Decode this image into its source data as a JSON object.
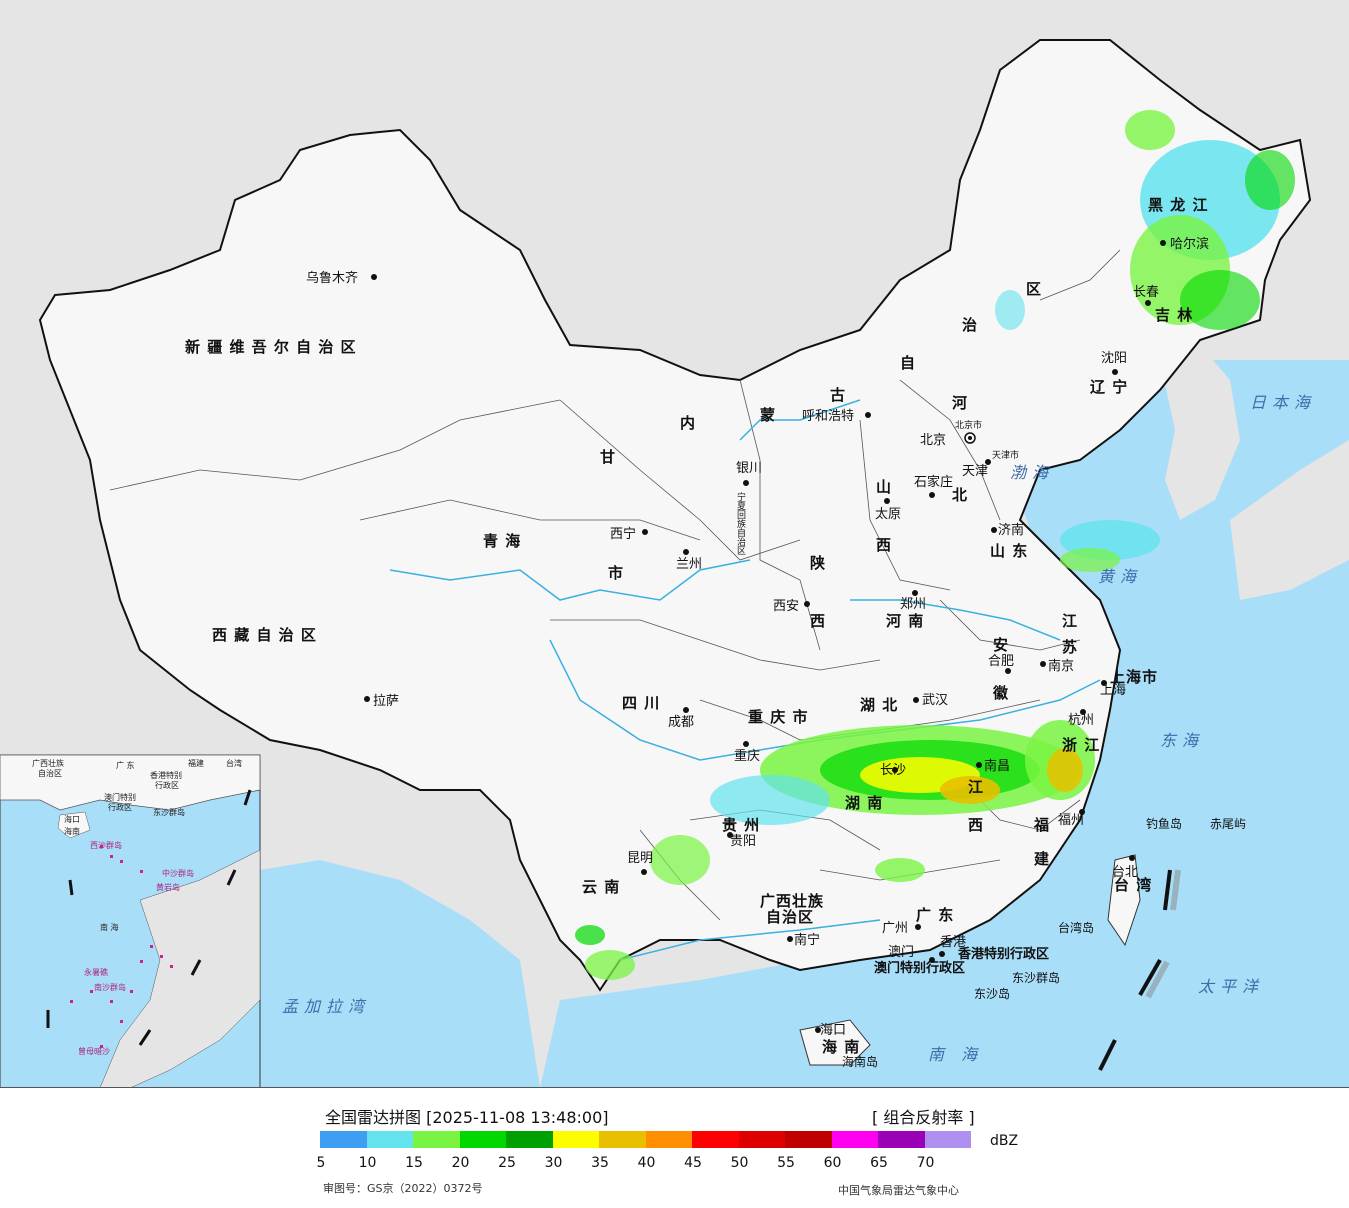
{
  "map": {
    "provinces": [
      {
        "name": "新 疆 维 吾 尔 自 治 区"
      },
      {
        "name": "西 藏 自 治 区"
      },
      {
        "name": "青 海"
      },
      {
        "name": "甘"
      },
      {
        "name": "内"
      },
      {
        "name": "蒙"
      },
      {
        "name": "古"
      },
      {
        "name": "自"
      },
      {
        "name": "治"
      },
      {
        "name": "区"
      },
      {
        "name": "黑 龙 江"
      },
      {
        "name": "吉 林"
      },
      {
        "name": "辽 宁"
      },
      {
        "name": "河"
      },
      {
        "name": "北"
      },
      {
        "name": "山"
      },
      {
        "name": "西"
      },
      {
        "name": "陕"
      },
      {
        "name": "西"
      },
      {
        "name": "河 南"
      },
      {
        "name": "山 东"
      },
      {
        "name": "江"
      },
      {
        "name": "苏"
      },
      {
        "name": "安"
      },
      {
        "name": "徽"
      },
      {
        "name": "上海市"
      },
      {
        "name": "浙 江"
      },
      {
        "name": "湖 北"
      },
      {
        "name": "四 川"
      },
      {
        "name": "重 庆 市"
      },
      {
        "name": "湖 南"
      },
      {
        "name": "江"
      },
      {
        "name": "西"
      },
      {
        "name": "福"
      },
      {
        "name": "建"
      },
      {
        "name": "贵 州"
      },
      {
        "name": "云 南"
      },
      {
        "name": "广西壮族"
      },
      {
        "name": "自治区"
      },
      {
        "name": "广 东"
      },
      {
        "name": "海 南"
      },
      {
        "name": "台 湾"
      },
      {
        "name": "宁夏回族自治区"
      },
      {
        "name": "市"
      }
    ],
    "cities": [
      {
        "name": "乌鲁木齐"
      },
      {
        "name": "拉萨"
      },
      {
        "name": "西宁"
      },
      {
        "name": "兰州"
      },
      {
        "name": "银川"
      },
      {
        "name": "呼和浩特"
      },
      {
        "name": "北京"
      },
      {
        "name": "北京市"
      },
      {
        "name": "天津"
      },
      {
        "name": "天津市"
      },
      {
        "name": "石家庄"
      },
      {
        "name": "太原"
      },
      {
        "name": "西安"
      },
      {
        "name": "郑州"
      },
      {
        "name": "济南"
      },
      {
        "name": "合肥"
      },
      {
        "name": "南京"
      },
      {
        "name": "上海"
      },
      {
        "name": "杭州"
      },
      {
        "name": "武汉"
      },
      {
        "name": "成都"
      },
      {
        "name": "重庆"
      },
      {
        "name": "长沙"
      },
      {
        "name": "南昌"
      },
      {
        "name": "福州"
      },
      {
        "name": "贵阳"
      },
      {
        "name": "昆明"
      },
      {
        "name": "南宁"
      },
      {
        "name": "广州"
      },
      {
        "name": "澳门"
      },
      {
        "name": "香港"
      },
      {
        "name": "海口"
      },
      {
        "name": "台北"
      },
      {
        "name": "哈尔滨"
      },
      {
        "name": "长春"
      },
      {
        "name": "沈阳"
      }
    ],
    "seas": [
      {
        "name": "日本海"
      },
      {
        "name": "渤海"
      },
      {
        "name": "黄海"
      },
      {
        "name": "东海"
      },
      {
        "name": "太平洋"
      },
      {
        "name": "南 海"
      },
      {
        "name": "孟加拉湾"
      }
    ],
    "islands": [
      {
        "name": "钓鱼岛"
      },
      {
        "name": "赤尾屿"
      },
      {
        "name": "台湾岛"
      },
      {
        "name": "东沙群岛"
      },
      {
        "name": "东沙岛"
      },
      {
        "name": "海南岛"
      },
      {
        "name": "香港特别行政区"
      },
      {
        "name": "澳门特别行政区"
      }
    ],
    "inset": {
      "labels": [
        {
          "name": "广西壮族"
        },
        {
          "name": "自治区"
        },
        {
          "name": "广 东"
        },
        {
          "name": "福建"
        },
        {
          "name": "台湾"
        },
        {
          "name": "香港特别"
        },
        {
          "name": "行政区"
        },
        {
          "name": "澳门特别"
        },
        {
          "name": "行政区"
        },
        {
          "name": "东沙群岛"
        },
        {
          "name": "海口"
        },
        {
          "name": "海南"
        },
        {
          "name": "南 海"
        }
      ],
      "pink_labels": [
        {
          "name": "西沙群岛"
        },
        {
          "name": "中沙群岛"
        },
        {
          "name": "黄岩岛"
        },
        {
          "name": "南沙群岛"
        },
        {
          "name": "永暑礁"
        },
        {
          "name": "曾母暗沙"
        }
      ]
    }
  },
  "legend": {
    "title": "全国雷达拼图 [2025-11-08 13:48:00]",
    "product": "[ 组合反射率 ]",
    "unit": "dBZ",
    "ticks": [
      "5",
      "10",
      "15",
      "20",
      "25",
      "30",
      "35",
      "40",
      "45",
      "50",
      "55",
      "60",
      "65",
      "70"
    ],
    "colors": [
      "#3d9ef2",
      "#63e3ee",
      "#79f442",
      "#00d800",
      "#00a000",
      "#fdfd00",
      "#e8c000",
      "#ff8f00",
      "#ff0000",
      "#de0000",
      "#c00000",
      "#ff00f0",
      "#9a00b6",
      "#ad90f0"
    ],
    "approval": "审图号：GS京（2022）0372号",
    "source": "中国气象局雷达气象中心"
  }
}
